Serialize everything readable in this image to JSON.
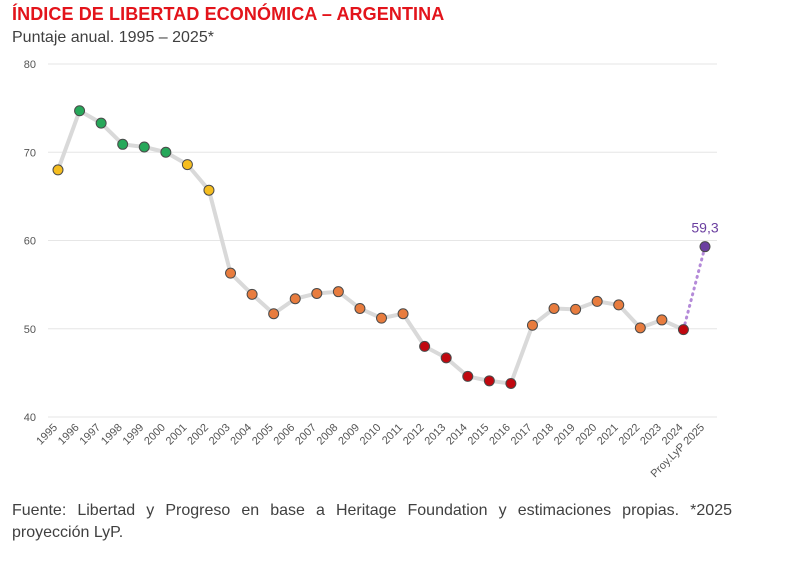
{
  "header": {
    "title": "ÍNDICE DE LIBERTAD ECONÓMICA – ARGENTINA",
    "subtitle": "Puntaje anual. 1995 – 2025*"
  },
  "footer": {
    "source": "Fuente: Libertad y Progreso en base a Heritage Foundation y estimaciones propias. *2025 proyección LyP."
  },
  "colors": {
    "moderately_free": "#27a85a",
    "moderately_free_label": "green",
    "mostly_unfree": "#f5bd1f",
    "repressed_light": "#e87c3e",
    "repressed": "#c0080f",
    "projection": "#6b3fa0",
    "line": "#d9d9d9",
    "projection_line": "#b48ad8",
    "grid": "#e6e6e6"
  },
  "chart_data": {
    "type": "line",
    "title": "ÍNDICE DE LIBERTAD ECONÓMICA – ARGENTINA",
    "subtitle": "Puntaje anual. 1995 – 2025*",
    "xlabel": "",
    "ylabel": "",
    "ylim": [
      40,
      80
    ],
    "yticks": [
      40,
      50,
      60,
      70,
      80
    ],
    "grid": true,
    "categories": [
      "1995",
      "1996",
      "1997",
      "1998",
      "1999",
      "2000",
      "2001",
      "2002",
      "2003",
      "2004",
      "2005",
      "2006",
      "2007",
      "2008",
      "2009",
      "2010",
      "2011",
      "2012",
      "2013",
      "2014",
      "2015",
      "2016",
      "2017",
      "2018",
      "2019",
      "2020",
      "2021",
      "2022",
      "2023",
      "2024",
      "Proy.LyP 2025"
    ],
    "values": [
      68.0,
      74.7,
      73.3,
      70.9,
      70.6,
      70.0,
      68.6,
      65.7,
      56.3,
      53.9,
      51.7,
      53.4,
      54.0,
      54.2,
      52.3,
      51.2,
      51.7,
      48.0,
      46.7,
      44.6,
      44.1,
      43.8,
      50.4,
      52.3,
      52.2,
      53.1,
      52.7,
      50.1,
      51.0,
      49.9,
      59.3
    ],
    "point_categories": [
      "mostly_unfree",
      "moderately_free",
      "moderately_free",
      "moderately_free",
      "moderately_free",
      "moderately_free",
      "mostly_unfree",
      "mostly_unfree",
      "repressed_light",
      "repressed_light",
      "repressed_light",
      "repressed_light",
      "repressed_light",
      "repressed_light",
      "repressed_light",
      "repressed_light",
      "repressed_light",
      "repressed",
      "repressed",
      "repressed",
      "repressed",
      "repressed",
      "repressed_light",
      "repressed_light",
      "repressed_light",
      "repressed_light",
      "repressed_light",
      "repressed_light",
      "repressed_light",
      "repressed",
      "projection"
    ],
    "annotations": [
      {
        "category": "Proy.LyP 2025",
        "text": "59,3"
      }
    ]
  }
}
